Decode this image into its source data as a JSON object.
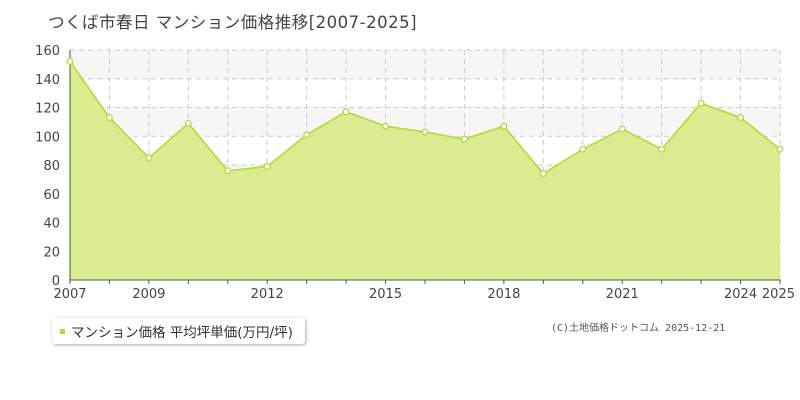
{
  "page": {
    "title": "つくば市春日 マンション価格推移[2007-2025]",
    "credit": "(C)土地価格ドットコム 2025-12-21"
  },
  "legend": {
    "label": "マンション価格 平均坪単価(万円/坪)",
    "color": "#b5d83a"
  },
  "colors": {
    "fill": "#d9ec8f",
    "line": "#b5d83a",
    "grid": "#cccccc",
    "band": "#f6f6f6"
  },
  "chart_data": {
    "type": "area",
    "x": [
      2007,
      2008,
      2009,
      2010,
      2011,
      2012,
      2013,
      2014,
      2015,
      2016,
      2017,
      2018,
      2019,
      2020,
      2021,
      2022,
      2023,
      2024,
      2025
    ],
    "series": [
      {
        "name": "マンション価格 平均坪単価(万円/坪)",
        "values": [
          152,
          113,
          85,
          109,
          76,
          79,
          101,
          117,
          107,
          103,
          98,
          107,
          74,
          91,
          105,
          91,
          123,
          113,
          91
        ]
      }
    ],
    "xticks": [
      2007,
      2009,
      2012,
      2015,
      2018,
      2021,
      2024,
      2025
    ],
    "yticks": [
      0,
      20,
      40,
      60,
      80,
      100,
      120,
      140,
      160
    ],
    "xlim": [
      2007,
      2025
    ],
    "ylim": [
      0,
      160
    ],
    "grid": true,
    "legend_position": "bottom-left"
  }
}
